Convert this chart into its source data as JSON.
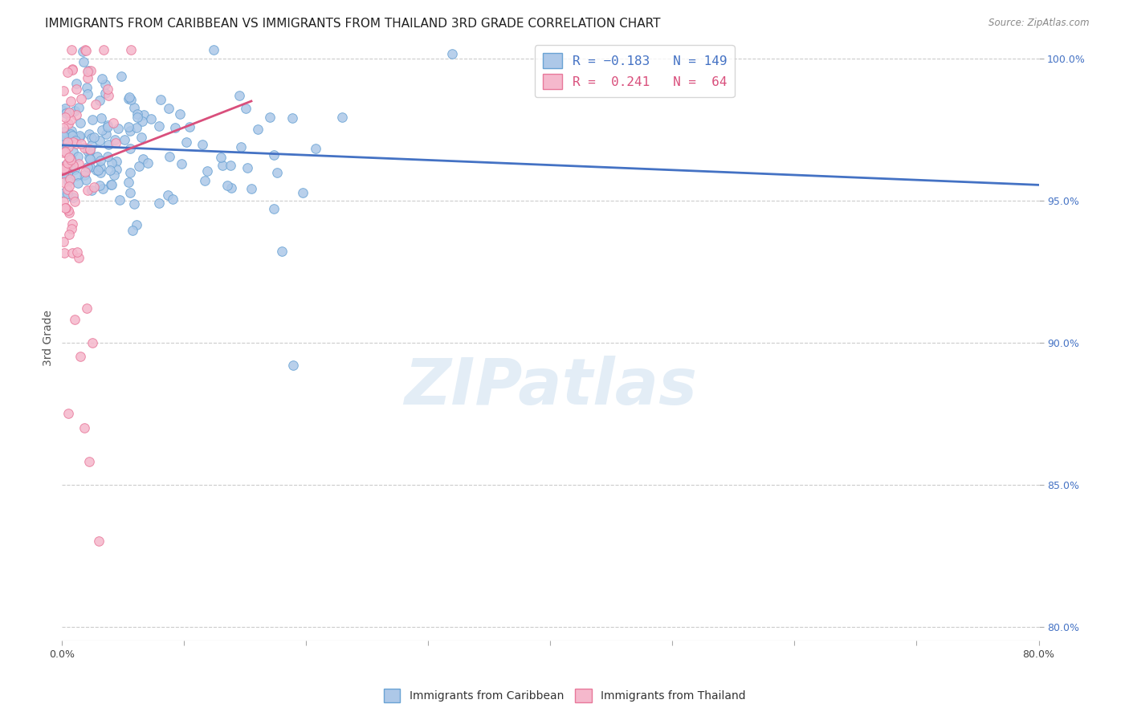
{
  "title": "IMMIGRANTS FROM CARIBBEAN VS IMMIGRANTS FROM THAILAND 3RD GRADE CORRELATION CHART",
  "source": "Source: ZipAtlas.com",
  "ylabel": "3rd Grade",
  "yaxis_labels": [
    "100.0%",
    "95.0%",
    "90.0%",
    "85.0%",
    "80.0%"
  ],
  "yaxis_values": [
    1.0,
    0.95,
    0.9,
    0.85,
    0.8
  ],
  "xlim": [
    0.0,
    0.8
  ],
  "ylim": [
    0.795,
    1.008
  ],
  "blue_R": -0.183,
  "blue_N": 149,
  "pink_R": 0.241,
  "pink_N": 64,
  "blue_color": "#adc8e8",
  "blue_edge": "#6aa3d4",
  "pink_color": "#f5b8cc",
  "pink_edge": "#e8789a",
  "blue_line_color": "#4472c4",
  "pink_line_color": "#d94f7c",
  "background_color": "#ffffff",
  "grid_color": "#cccccc",
  "title_fontsize": 11,
  "scatter_size": 70,
  "blue_seed": 12,
  "pink_seed": 77,
  "blue_trend_x0": 0.0,
  "blue_trend_x1": 0.8,
  "blue_trend_y0": 0.9695,
  "blue_trend_y1": 0.9555,
  "pink_trend_x0": 0.0,
  "pink_trend_x1": 0.155,
  "pink_trend_y0": 0.959,
  "pink_trend_y1": 0.985
}
